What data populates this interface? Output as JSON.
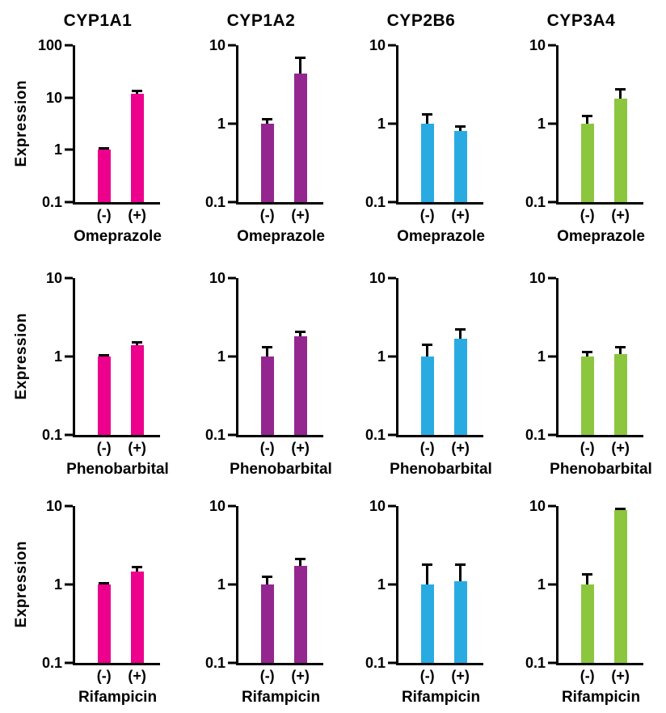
{
  "figure_title": "",
  "chart_data": {
    "type": "bar",
    "layout": "3x4 grid of log-scale bar charts with upper error bars",
    "ylabel": "Expression",
    "categories": [
      "(-)",
      "(+)"
    ],
    "columns": [
      "CYP1A1",
      "CYP1A2",
      "CYP2B6",
      "CYP3A4"
    ],
    "rows": [
      "Omeprazole",
      "Phenobarbital",
      "Rifampicin"
    ],
    "colors": {
      "CYP1A1": "#EC008C",
      "CYP1A2": "#93278F",
      "CYP2B6": "#29ABE2",
      "CYP3A4": "#8CC63F"
    },
    "subplots": [
      {
        "gene": "CYP1A1",
        "drug": "Omeprazole",
        "color": "#EC008C",
        "ylim": [
          0.1,
          100
        ],
        "y_ticks": [
          "100",
          "10",
          "1",
          "0.1"
        ],
        "values": [
          1.0,
          12.0
        ],
        "error_upper": [
          1.06,
          13.3
        ],
        "show_title": true,
        "show_ylabel": true
      },
      {
        "gene": "CYP1A2",
        "drug": "Omeprazole",
        "color": "#93278F",
        "ylim": [
          0.1,
          10
        ],
        "y_ticks": [
          "10",
          "1",
          "0.1"
        ],
        "values": [
          1.0,
          4.4
        ],
        "error_upper": [
          1.15,
          6.9
        ],
        "show_title": true,
        "show_ylabel": false
      },
      {
        "gene": "CYP2B6",
        "drug": "Omeprazole",
        "color": "#29ABE2",
        "ylim": [
          0.1,
          10
        ],
        "y_ticks": [
          "10",
          "1",
          "0.1"
        ],
        "values": [
          1.0,
          0.8
        ],
        "error_upper": [
          1.3,
          0.91
        ],
        "show_title": true,
        "show_ylabel": false
      },
      {
        "gene": "CYP3A4",
        "drug": "Omeprazole",
        "color": "#8CC63F",
        "ylim": [
          0.1,
          10
        ],
        "y_ticks": [
          "10",
          "1",
          "0.1"
        ],
        "values": [
          1.0,
          2.1
        ],
        "error_upper": [
          1.25,
          2.75
        ],
        "show_title": true,
        "show_ylabel": false
      },
      {
        "gene": "CYP1A1",
        "drug": "Phenobarbital",
        "color": "#EC008C",
        "ylim": [
          0.1,
          10
        ],
        "y_ticks": [
          "10",
          "1",
          "0.1"
        ],
        "values": [
          1.0,
          1.4
        ],
        "error_upper": [
          1.03,
          1.5
        ],
        "show_title": false,
        "show_ylabel": true
      },
      {
        "gene": "CYP1A2",
        "drug": "Phenobarbital",
        "color": "#93278F",
        "ylim": [
          0.1,
          10
        ],
        "y_ticks": [
          "10",
          "1",
          "0.1"
        ],
        "values": [
          1.0,
          1.8
        ],
        "error_upper": [
          1.3,
          2.05
        ],
        "show_title": false,
        "show_ylabel": false
      },
      {
        "gene": "CYP2B6",
        "drug": "Phenobarbital",
        "color": "#29ABE2",
        "ylim": [
          0.1,
          10
        ],
        "y_ticks": [
          "10",
          "1",
          "0.1"
        ],
        "values": [
          1.0,
          1.7
        ],
        "error_upper": [
          1.4,
          2.2
        ],
        "show_title": false,
        "show_ylabel": false
      },
      {
        "gene": "CYP3A4",
        "drug": "Phenobarbital",
        "color": "#8CC63F",
        "ylim": [
          0.1,
          10
        ],
        "y_ticks": [
          "10",
          "1",
          "0.1"
        ],
        "values": [
          1.0,
          1.08
        ],
        "error_upper": [
          1.15,
          1.3
        ],
        "show_title": false,
        "show_ylabel": false
      },
      {
        "gene": "CYP1A1",
        "drug": "Rifampicin",
        "color": "#EC008C",
        "ylim": [
          0.1,
          10
        ],
        "y_ticks": [
          "10",
          "1",
          "0.1"
        ],
        "values": [
          1.0,
          1.45
        ],
        "error_upper": [
          1.03,
          1.66
        ],
        "show_title": false,
        "show_ylabel": true
      },
      {
        "gene": "CYP1A2",
        "drug": "Rifampicin",
        "color": "#93278F",
        "ylim": [
          0.1,
          10
        ],
        "y_ticks": [
          "10",
          "1",
          "0.1"
        ],
        "values": [
          1.0,
          1.74
        ],
        "error_upper": [
          1.25,
          2.1
        ],
        "show_title": false,
        "show_ylabel": false
      },
      {
        "gene": "CYP2B6",
        "drug": "Rifampicin",
        "color": "#29ABE2",
        "ylim": [
          0.1,
          10
        ],
        "y_ticks": [
          "10",
          "1",
          "0.1"
        ],
        "values": [
          1.0,
          1.1
        ],
        "error_upper": [
          1.78,
          1.81
        ],
        "show_title": false,
        "show_ylabel": false
      },
      {
        "gene": "CYP3A4",
        "drug": "Rifampicin",
        "color": "#8CC63F",
        "ylim": [
          0.1,
          10
        ],
        "y_ticks": [
          "10",
          "1",
          "0.1"
        ],
        "values": [
          1.0,
          8.9
        ],
        "error_upper": [
          1.36,
          9.1
        ],
        "show_title": false,
        "show_ylabel": false
      }
    ]
  }
}
